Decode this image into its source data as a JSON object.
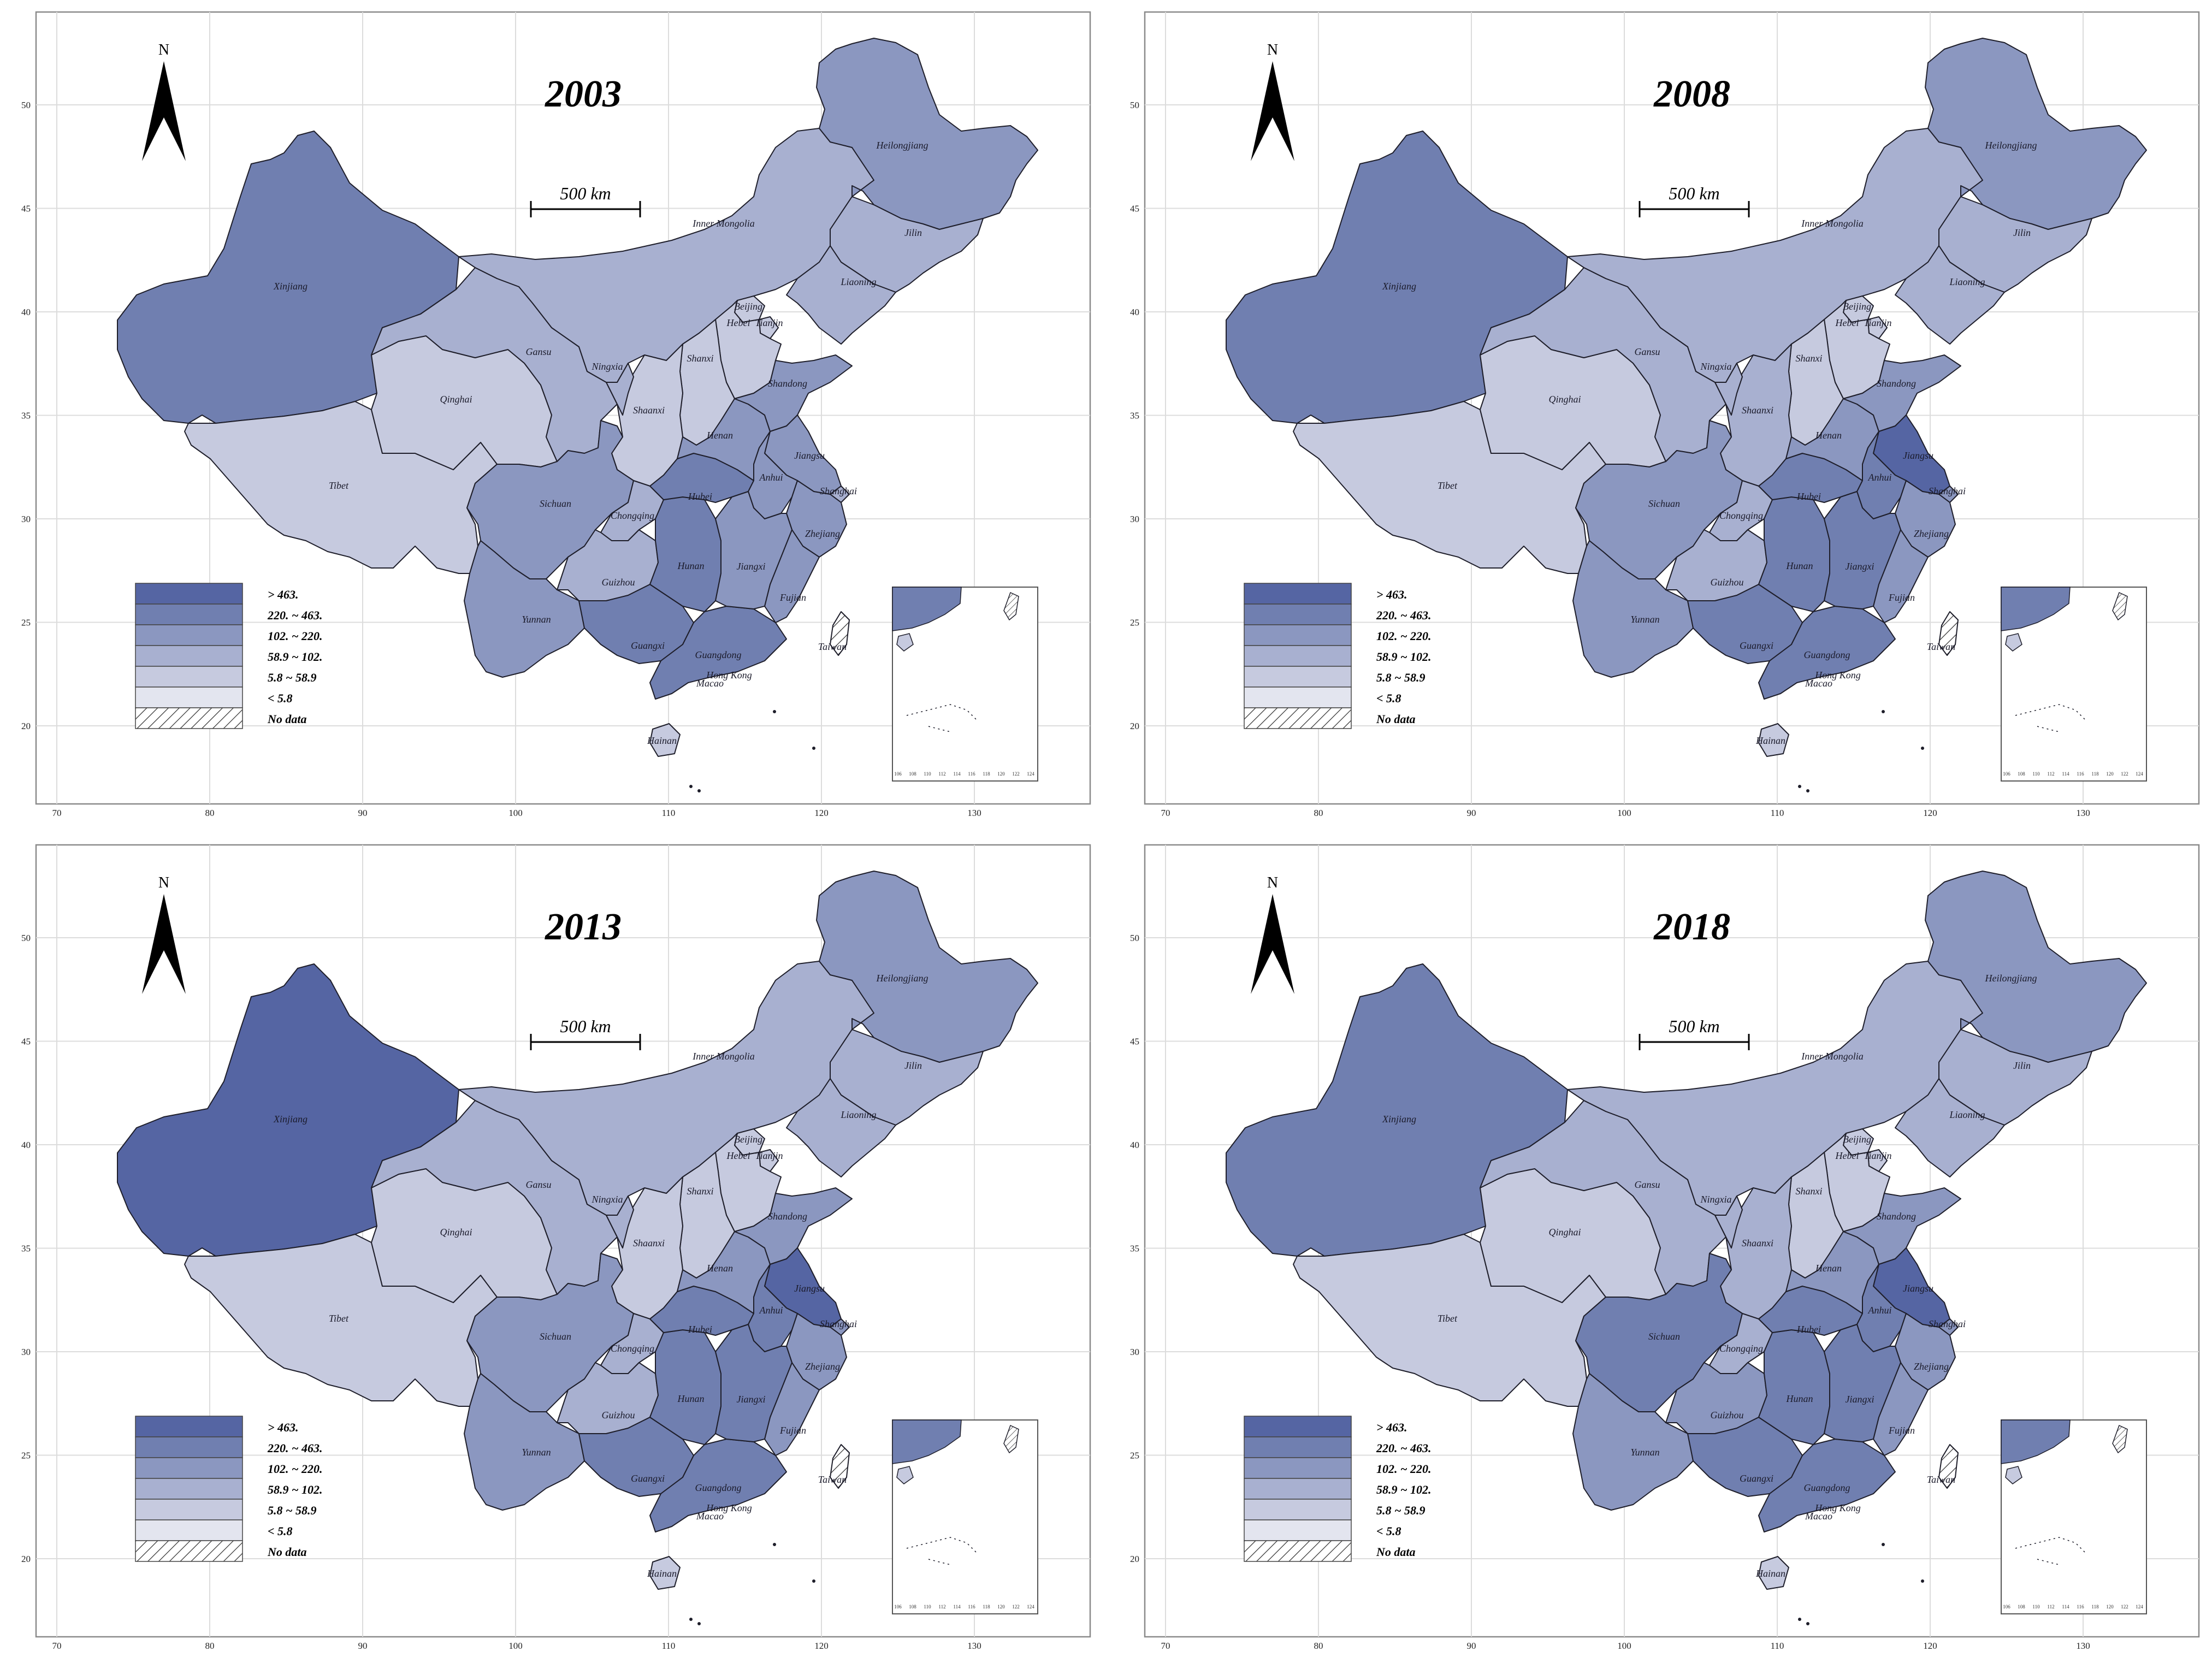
{
  "panels": [
    {
      "year": "2003",
      "fills": {
        "xinjiang": "c4",
        "tibet": "c1",
        "qinghai": "c1",
        "gansu": "c2",
        "innermongolia": "c2",
        "heilongjiang": "c3",
        "jilin": "c2",
        "liaoning": "c2",
        "beijing": "c1",
        "tianjin": "c1",
        "hebei": "c1",
        "shanxi": "c1",
        "shaanxi": "c1",
        "ningxia": "c2",
        "sichuan": "c3",
        "chongqing": "c2",
        "yunnan": "c3",
        "guizhou": "c2",
        "guangxi": "c4",
        "guangdong": "c4",
        "hunan": "c4",
        "hubei": "c4",
        "henan": "c3",
        "shandong": "c3",
        "jiangsu": "c3",
        "anhui": "c3",
        "shanghai": "c2",
        "zhejiang": "c3",
        "fujian": "c3",
        "jiangxi": "c3",
        "hainan": "c1"
      }
    },
    {
      "year": "2008",
      "fills": {
        "xinjiang": "c4",
        "tibet": "c1",
        "qinghai": "c1",
        "gansu": "c2",
        "innermongolia": "c2",
        "heilongjiang": "c3",
        "jilin": "c2",
        "liaoning": "c2",
        "beijing": "c1",
        "tianjin": "c1",
        "hebei": "c1",
        "shanxi": "c1",
        "shaanxi": "c2",
        "ningxia": "c2",
        "sichuan": "c3",
        "chongqing": "c2",
        "yunnan": "c3",
        "guizhou": "c2",
        "guangxi": "c4",
        "guangdong": "c4",
        "hunan": "c4",
        "hubei": "c4",
        "henan": "c3",
        "shandong": "c3",
        "jiangsu": "c5",
        "anhui": "c4",
        "shanghai": "c3",
        "zhejiang": "c3",
        "fujian": "c3",
        "jiangxi": "c4",
        "hainan": "c1"
      }
    },
    {
      "year": "2013",
      "fills": {
        "xinjiang": "c5",
        "tibet": "c1",
        "qinghai": "c1",
        "gansu": "c2",
        "innermongolia": "c2",
        "heilongjiang": "c3",
        "jilin": "c2",
        "liaoning": "c2",
        "beijing": "c1",
        "tianjin": "c1",
        "hebei": "c1",
        "shanxi": "c1",
        "shaanxi": "c1",
        "ningxia": "c2",
        "sichuan": "c3",
        "chongqing": "c2",
        "yunnan": "c3",
        "guizhou": "c2",
        "guangxi": "c4",
        "guangdong": "c4",
        "hunan": "c4",
        "hubei": "c4",
        "henan": "c3",
        "shandong": "c3",
        "jiangsu": "c5",
        "anhui": "c4",
        "shanghai": "c3",
        "zhejiang": "c3",
        "fujian": "c3",
        "jiangxi": "c4",
        "hainan": "c1"
      }
    },
    {
      "year": "2018",
      "fills": {
        "xinjiang": "c4",
        "tibet": "c1",
        "qinghai": "c1",
        "gansu": "c2",
        "innermongolia": "c2",
        "heilongjiang": "c3",
        "jilin": "c2",
        "liaoning": "c2",
        "beijing": "c1",
        "tianjin": "c1",
        "hebei": "c1",
        "shanxi": "c1",
        "shaanxi": "c2",
        "ningxia": "c2",
        "sichuan": "c4",
        "chongqing": "c2",
        "yunnan": "c3",
        "guizhou": "c3",
        "guangxi": "c4",
        "guangdong": "c4",
        "hunan": "c4",
        "hubei": "c4",
        "henan": "c3",
        "shandong": "c3",
        "jiangsu": "c5",
        "anhui": "c4",
        "shanghai": "c3",
        "zhejiang": "c3",
        "fujian": "c3",
        "jiangxi": "c4",
        "hainan": "c1"
      }
    }
  ],
  "colors": {
    "c5": "#5565a3",
    "c4": "#707fb0",
    "c3": "#8b97c0",
    "c2": "#a8b0d0",
    "c1": "#c6cadf",
    "c0": "#e3e5ef",
    "nodata": "#ffffff",
    "outline": "#1e1e2a"
  },
  "legend": [
    {
      "label": "> 463.",
      "color": "c5"
    },
    {
      "label": "220. ~ 463.",
      "color": "c4"
    },
    {
      "label": "102. ~ 220.",
      "color": "c3"
    },
    {
      "label": "58.9 ~ 102.",
      "color": "c2"
    },
    {
      "label": "5.8 ~ 58.9",
      "color": "c1"
    },
    {
      "label": "< 5.8",
      "color": "c0"
    },
    {
      "label": "No data",
      "color": "nodata"
    }
  ],
  "scale_bar_label": "500 km",
  "north_label": "N",
  "x_ticks": [
    "70",
    "80",
    "90",
    "100",
    "110",
    "120",
    "130"
  ],
  "y_ticks": [
    "20",
    "25",
    "30",
    "35",
    "40",
    "45",
    "50"
  ],
  "inset_x_ticks": [
    "106",
    "108",
    "110",
    "112",
    "114",
    "116",
    "118",
    "120",
    "122",
    "124"
  ],
  "provinces": [
    {
      "id": "xinjiang",
      "label": "Xinjiang"
    },
    {
      "id": "tibet",
      "label": "Tibet"
    },
    {
      "id": "qinghai",
      "label": "Qinghai"
    },
    {
      "id": "gansu",
      "label": "Gansu"
    },
    {
      "id": "innermongolia",
      "label": "Inner Mongolia"
    },
    {
      "id": "heilongjiang",
      "label": "Heilongjiang"
    },
    {
      "id": "jilin",
      "label": "Jilin"
    },
    {
      "id": "liaoning",
      "label": "Liaoning"
    },
    {
      "id": "beijing",
      "label": "Beijing"
    },
    {
      "id": "tianjin",
      "label": "Tianjin"
    },
    {
      "id": "hebei",
      "label": "Hebei"
    },
    {
      "id": "shanxi",
      "label": "Shanxi"
    },
    {
      "id": "shaanxi",
      "label": "Shaanxi"
    },
    {
      "id": "ningxia",
      "label": "Ningxia"
    },
    {
      "id": "sichuan",
      "label": "Sichuan"
    },
    {
      "id": "chongqing",
      "label": "Chongqing"
    },
    {
      "id": "yunnan",
      "label": "Yunnan"
    },
    {
      "id": "guizhou",
      "label": "Guizhou"
    },
    {
      "id": "guangxi",
      "label": "Guangxi"
    },
    {
      "id": "guangdong",
      "label": "Guangdong"
    },
    {
      "id": "hunan",
      "label": "Hunan"
    },
    {
      "id": "hubei",
      "label": "Hubei"
    },
    {
      "id": "henan",
      "label": "Henan"
    },
    {
      "id": "shandong",
      "label": "Shandong"
    },
    {
      "id": "jiangsu",
      "label": "Jiangsu"
    },
    {
      "id": "anhui",
      "label": "Anhui"
    },
    {
      "id": "shanghai",
      "label": "Shanghai"
    },
    {
      "id": "zhejiang",
      "label": "Zhejiang"
    },
    {
      "id": "fujian",
      "label": "Fujian"
    },
    {
      "id": "jiangxi",
      "label": "Jiangxi"
    },
    {
      "id": "hainan",
      "label": "Hainan"
    },
    {
      "id": "taiwan",
      "label": "Taiwan"
    },
    {
      "id": "hongkong",
      "label": "Hong Kong"
    },
    {
      "id": "macao",
      "label": "Macao"
    }
  ]
}
